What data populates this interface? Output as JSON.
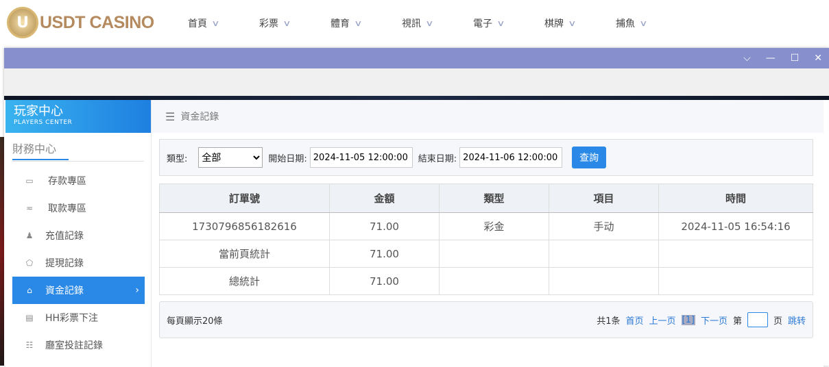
{
  "brand": {
    "logo_text": "USDT CASINO",
    "logo_letter": "U"
  },
  "nav": [
    "首頁",
    "彩票",
    "體育",
    "視訊",
    "電子",
    "棋牌",
    "捕魚"
  ],
  "window": {
    "controls": [
      "chevron-down",
      "minimize",
      "maximize",
      "close"
    ]
  },
  "sidebar": {
    "title": "玩家中心",
    "subtitle": "PLAYERS CENTER",
    "section": "財務中心",
    "items": [
      {
        "label": "存款專區",
        "icon": "card-icon"
      },
      {
        "label": "取款專區",
        "icon": "hand-money-icon"
      },
      {
        "label": "充值記錄",
        "icon": "money-bag-icon"
      },
      {
        "label": "提現記錄",
        "icon": "wallet-icon"
      },
      {
        "label": "資金記錄",
        "icon": "house-icon",
        "active": true
      },
      {
        "label": "HH彩票下注",
        "icon": "list-icon"
      },
      {
        "label": "廳室投註記錄",
        "icon": "bullet-list-icon"
      }
    ]
  },
  "content": {
    "title": "資金記錄",
    "filter": {
      "type_label": "類型:",
      "type_value": "全部",
      "start_label": "開始日期:",
      "start_value": "2024-11-05 12:00:00",
      "end_label": "結束日期:",
      "end_value": "2024-11-06 12:00:00",
      "search": "查詢"
    },
    "table": {
      "headers": [
        "訂單號",
        "金額",
        "類型",
        "項目",
        "時間"
      ],
      "rows": [
        [
          "1730796856182616",
          "71.00",
          "彩金",
          "手动",
          "2024-11-05 16:54:16"
        ],
        [
          "當前頁統計",
          "71.00",
          "",
          "",
          ""
        ],
        [
          "總統計",
          "71.00",
          "",
          "",
          ""
        ]
      ]
    },
    "pager": {
      "per_page": "每頁顯示20條",
      "total": "共1条",
      "first": "首页",
      "prev": "上一页",
      "current": "[1]",
      "next": "下一页",
      "page_prefix": "第",
      "page_suffix": "页",
      "jump": "跳转"
    }
  },
  "colors": {
    "accent": "#2a88e6",
    "titlebar": "#8790cd"
  }
}
